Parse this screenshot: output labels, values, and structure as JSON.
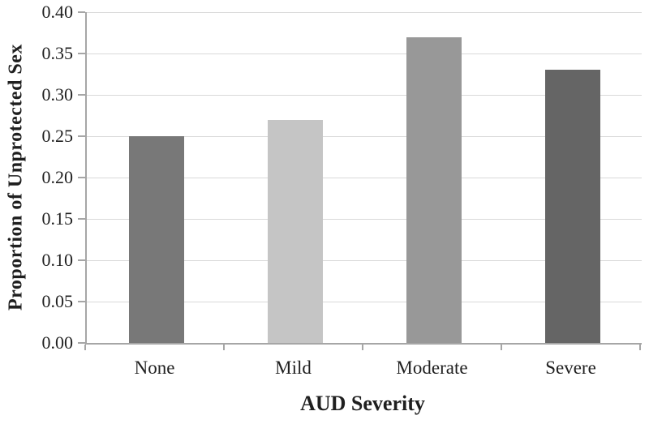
{
  "chart_data": {
    "type": "bar",
    "title": "",
    "categories": [
      "None",
      "Mild",
      "Moderate",
      "Severe"
    ],
    "values": [
      0.25,
      0.27,
      0.37,
      0.33
    ],
    "bar_colors": [
      "#787878",
      "#c5c5c5",
      "#989898",
      "#656565"
    ],
    "xlabel": "AUD Severity",
    "ylabel": "Proportion of Unprotected Sex",
    "ylim": [
      0,
      0.4
    ],
    "ytick_step": 0.05,
    "ytick_labels": [
      "0.00",
      "0.05",
      "0.10",
      "0.15",
      "0.20",
      "0.25",
      "0.30",
      "0.35",
      "0.40"
    ],
    "grid": true,
    "legend": false
  },
  "colors": {
    "background": "#ffffff",
    "gridline": "#d9d9d9",
    "axis_line": "#a6a6a6",
    "text": "#1f1f1f"
  }
}
